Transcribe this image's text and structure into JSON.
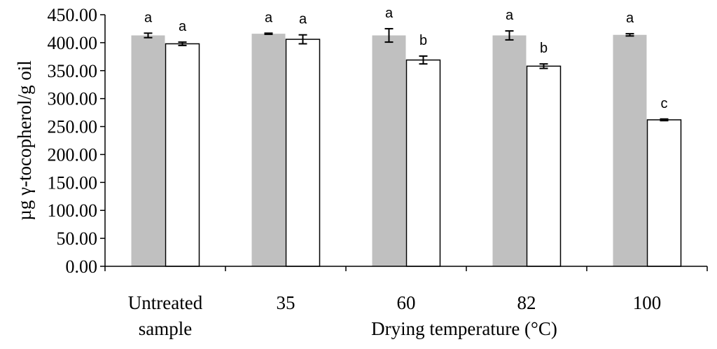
{
  "chart_data": {
    "type": "bar",
    "title": "",
    "xlabel": "Drying temperature (°C)",
    "ylabel": "µg γ-tocopherol/g oil",
    "ylim": [
      0,
      450
    ],
    "ytick_step": 50,
    "ytick_labels": [
      "0.00",
      "50.00",
      "100.00",
      "150.00",
      "200.00",
      "250.00",
      "300.00",
      "350.00",
      "400.00",
      "450.00"
    ],
    "categories": [
      [
        "Untreated",
        "sample"
      ],
      [
        "35"
      ],
      [
        "60"
      ],
      [
        "82"
      ],
      [
        "100"
      ]
    ],
    "series": [
      {
        "name": "series-gray",
        "color": "#c0c0c0",
        "values": [
          413,
          416,
          413,
          413,
          414
        ],
        "errors": [
          4,
          1,
          12,
          8,
          2
        ],
        "labels": [
          "a",
          "a",
          "a",
          "a",
          "a"
        ]
      },
      {
        "name": "series-white",
        "color": "#ffffff",
        "values": [
          398,
          406,
          369,
          358,
          262
        ],
        "errors": [
          3,
          8,
          7,
          4,
          1.5
        ],
        "labels": [
          "a",
          "a",
          "b",
          "b",
          "c"
        ]
      }
    ],
    "grid": false,
    "legend": "none"
  }
}
